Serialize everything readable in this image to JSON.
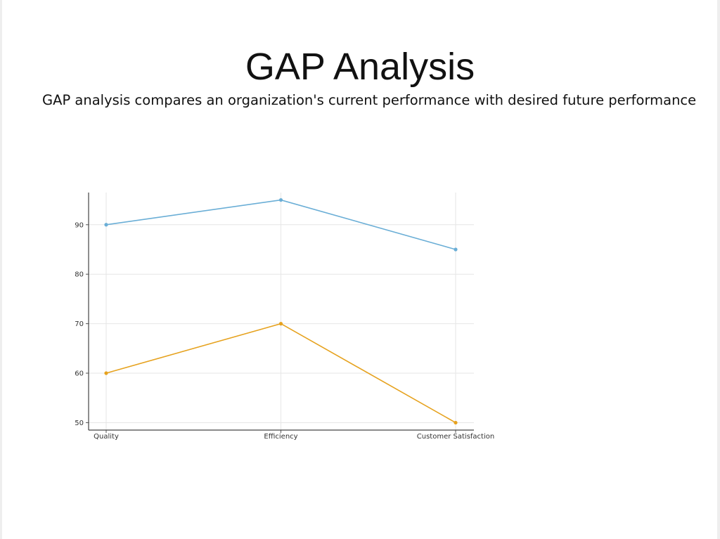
{
  "slide": {
    "title": "GAP Analysis",
    "subtitle": "GAP analysis compares an organization's current performance with desired future performance"
  },
  "chart_data": {
    "type": "line",
    "categories": [
      "Quality",
      "Efficiency",
      "Customer Satisfaction"
    ],
    "series": [
      {
        "values": [
          90,
          95,
          85
        ],
        "color": "#6AAED6"
      },
      {
        "values": [
          60,
          70,
          50
        ],
        "color": "#E6A21E"
      }
    ],
    "title": "",
    "xlabel": "",
    "ylabel": "",
    "yticks": [
      50,
      60,
      70,
      80,
      90
    ],
    "ylim": [
      48.5,
      96.5
    ],
    "grid": true
  }
}
